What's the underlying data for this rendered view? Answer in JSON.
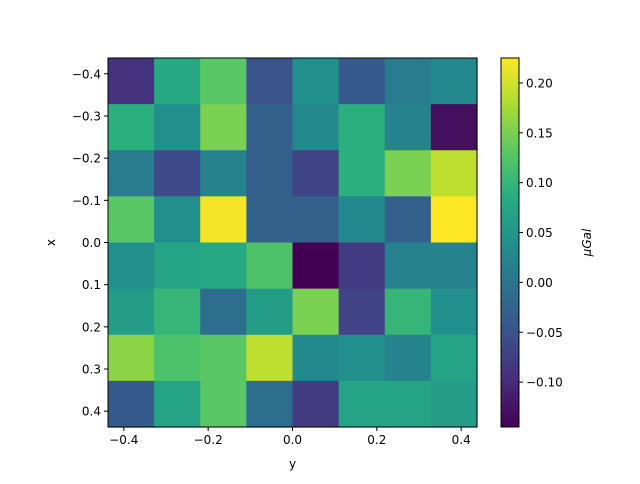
{
  "chart_data": {
    "type": "heatmap",
    "xlabel": "y",
    "ylabel": "x",
    "colorbar_label": "μGal",
    "x_values": [
      -0.4,
      -0.3,
      -0.2,
      -0.1,
      0.0,
      0.1,
      0.2,
      0.3,
      0.4
    ],
    "y_values": [
      -0.4,
      -0.3,
      -0.2,
      -0.1,
      0.0,
      0.1,
      0.2,
      0.3,
      0.4
    ],
    "x_ticks": [
      "−0.4",
      "−0.2",
      "0.0",
      "0.2",
      "0.4"
    ],
    "y_ticks": [
      "−0.4",
      "−0.3",
      "−0.2",
      "−0.1",
      "0.0",
      "0.1",
      "0.2",
      "0.3",
      "0.4"
    ],
    "y_axis_inverted": true,
    "colormap": "viridis",
    "vmin": -0.145,
    "vmax": 0.225,
    "colorbar_ticks": [
      "0.20",
      "0.15",
      "0.10",
      "0.05",
      "0.00",
      "−0.05",
      "−0.10"
    ],
    "colorbar_tick_values": [
      0.2,
      0.15,
      0.1,
      0.05,
      0.0,
      -0.05,
      -0.1
    ],
    "values": [
      [
        -0.09,
        0.08,
        0.13,
        -0.05,
        0.04,
        -0.04,
        0.01,
        0.03
      ],
      [
        0.09,
        0.04,
        0.15,
        -0.03,
        0.03,
        0.09,
        0.02,
        -0.13
      ],
      [
        0.01,
        -0.06,
        0.02,
        -0.03,
        -0.07,
        0.09,
        0.15,
        0.19
      ],
      [
        0.13,
        0.04,
        0.22,
        -0.03,
        -0.03,
        0.03,
        -0.03,
        0.225
      ],
      [
        0.04,
        0.07,
        0.08,
        0.12,
        -0.145,
        -0.08,
        0.02,
        0.02
      ],
      [
        0.06,
        0.1,
        -0.01,
        0.06,
        0.15,
        -0.07,
        0.1,
        0.04
      ],
      [
        0.16,
        0.12,
        0.13,
        0.19,
        0.03,
        0.04,
        0.02,
        0.07
      ],
      [
        -0.04,
        0.07,
        0.13,
        -0.01,
        -0.08,
        0.07,
        0.07,
        0.06
      ]
    ]
  }
}
